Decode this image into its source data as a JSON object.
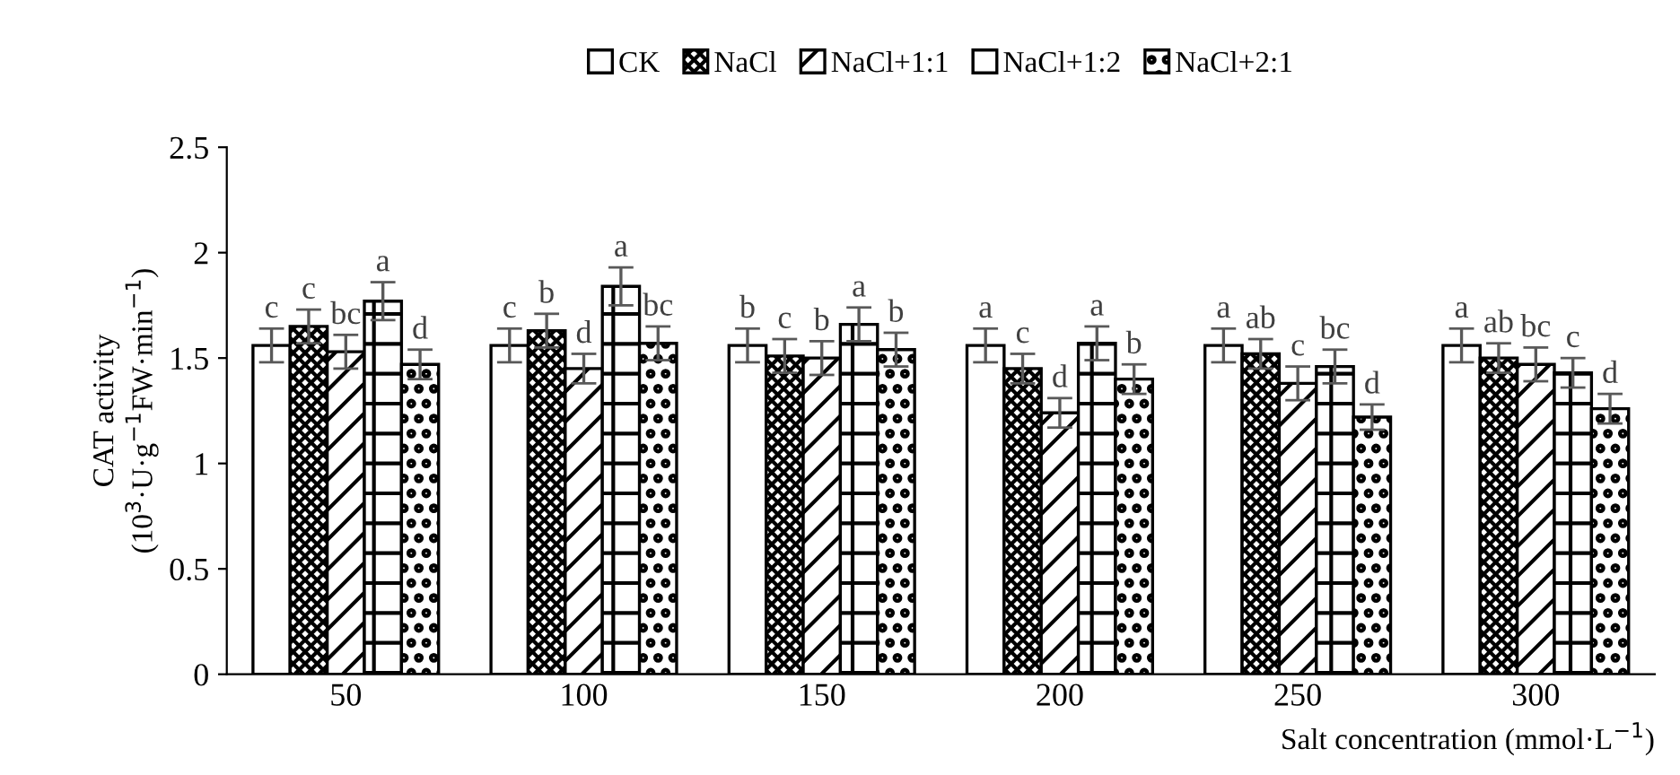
{
  "chart_data": {
    "type": "bar",
    "xlabel": "Salt concentration (mmol·L$^{−1}$)",
    "ylabel": "CAT activity\n(10$^{3}$·U·g$^{−1}$FW·min$^{−1}$)",
    "categories": [
      "50",
      "100",
      "150",
      "200",
      "250",
      "300"
    ],
    "series": [
      {
        "name": "CK",
        "color": "#ffffff",
        "values": [
          1.56,
          1.56,
          1.56,
          1.56,
          1.56,
          1.56
        ],
        "errors": [
          0.08,
          0.08,
          0.08,
          0.08,
          0.08,
          0.08
        ],
        "value_labels": [
          "c",
          "c",
          "b",
          "a",
          "a",
          "a"
        ]
      },
      {
        "name": "NaCl",
        "color": "#000000",
        "values": [
          1.65,
          1.63,
          1.51,
          1.45,
          1.52,
          1.5
        ],
        "errors": [
          0.08,
          0.08,
          0.08,
          0.07,
          0.07,
          0.07
        ],
        "value_labels": [
          "c",
          "b",
          "c",
          "c",
          "ab",
          "ab"
        ]
      },
      {
        "name": "NaCl+1:1",
        "color": "#000000",
        "values": [
          1.53,
          1.45,
          1.5,
          1.24,
          1.38,
          1.47
        ],
        "errors": [
          0.08,
          0.07,
          0.08,
          0.07,
          0.08,
          0.08
        ],
        "value_labels": [
          "bc",
          "d",
          "b",
          "d",
          "c",
          "bc"
        ]
      },
      {
        "name": "NaCl+1:2",
        "color": "#000000",
        "values": [
          1.77,
          1.84,
          1.66,
          1.57,
          1.46,
          1.43
        ],
        "errors": [
          0.09,
          0.09,
          0.08,
          0.08,
          0.08,
          0.07
        ],
        "value_labels": [
          "a",
          "a",
          "a",
          "a",
          "bc",
          "c"
        ]
      },
      {
        "name": "NaCl+2:1",
        "color": "#000000",
        "values": [
          1.47,
          1.57,
          1.54,
          1.4,
          1.22,
          1.26
        ],
        "errors": [
          0.07,
          0.08,
          0.08,
          0.07,
          0.06,
          0.07
        ],
        "value_labels": [
          "d",
          "bc",
          "b",
          "b",
          "d",
          "d"
        ]
      }
    ],
    "ylim": [
      0,
      2.5
    ],
    "yticks": [
      0,
      0.5,
      1,
      1.5,
      2,
      2.5
    ],
    "grid": false,
    "legend": "top"
  }
}
